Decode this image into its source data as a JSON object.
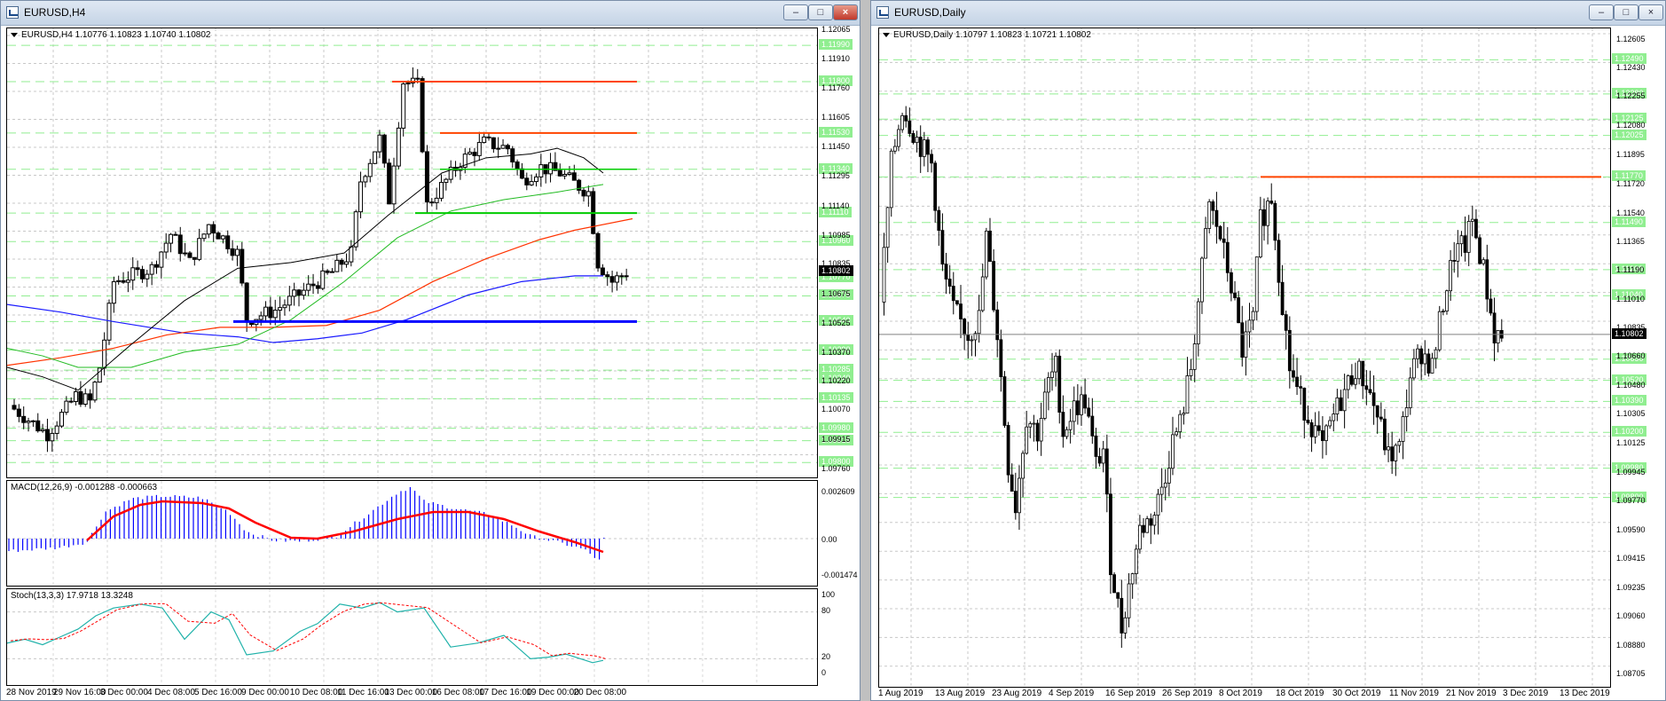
{
  "left": {
    "title": "EURUSD,H4",
    "info": "EURUSD,H4  1.10776 1.10823 1.10740 1.10802",
    "price_ticks": [
      "1.12065",
      "1.11910",
      "1.11760",
      "1.11605",
      "1.11450",
      "1.11295",
      "1.11140",
      "1.10985",
      "1.10835",
      "1.10675",
      "1.10525",
      "1.10370",
      "1.10220",
      "1.10070",
      "1.09915",
      "1.09760"
    ],
    "levels": [
      {
        "label": "1.11990"
      },
      {
        "label": "1.11800"
      },
      {
        "label": "1.11530"
      },
      {
        "label": "1.11340"
      },
      {
        "label": "1.11110"
      },
      {
        "label": "1.10960"
      },
      {
        "label": "1.10770"
      },
      {
        "label": "1.10675"
      },
      {
        "label": "1.10540"
      },
      {
        "label": "1.10390"
      },
      {
        "label": "1.10285"
      },
      {
        "label": "1.10240"
      },
      {
        "label": "1.10135"
      },
      {
        "label": "1.09980"
      },
      {
        "label": "1.09915"
      },
      {
        "label": "1.09800"
      }
    ],
    "current_price": "1.10802",
    "x_labels": [
      "28 Nov 2019",
      "29 Nov 16:00",
      "3 Dec 00:00",
      "4 Dec 08:00",
      "5 Dec 16:00",
      "9 Dec 00:00",
      "10 Dec 08:00",
      "11 Dec 16:00",
      "13 Dec 00:00",
      "16 Dec 08:00",
      "17 Dec 16:00",
      "19 Dec 00:00",
      "20 Dec 08:00"
    ],
    "macd": {
      "label": "MACD(12,26,9) -0.001288 -0.000663",
      "ticks": [
        "0.002609",
        "0.00",
        "-0.001474"
      ]
    },
    "stoch": {
      "label": "Stoch(13,3,3) 17.9718 13.3248",
      "ticks": [
        "100",
        "80",
        "20",
        "0"
      ]
    }
  },
  "right": {
    "title": "EURUSD,Daily",
    "info": "EURUSD,Daily  1.10797 1.10823 1.10721 1.10802",
    "price_ticks": [
      "1.12605",
      "1.12430",
      "1.12255",
      "1.12080",
      "1.11895",
      "1.11720",
      "1.11540",
      "1.11365",
      "1.11190",
      "1.11010",
      "1.10835",
      "1.10660",
      "1.10480",
      "1.10305",
      "1.10125",
      "1.09945",
      "1.09770",
      "1.09590",
      "1.09415",
      "1.09235",
      "1.09060",
      "1.08880",
      "1.08705"
    ],
    "levels": [
      {
        "label": "1.12490"
      },
      {
        "label": "1.12280"
      },
      {
        "label": "1.12125"
      },
      {
        "label": "1.12025"
      },
      {
        "label": "1.11770"
      },
      {
        "label": "1.11490"
      },
      {
        "label": "1.11200"
      },
      {
        "label": "1.11040"
      },
      {
        "label": "1.10650"
      },
      {
        "label": "1.10520"
      },
      {
        "label": "1.10390"
      },
      {
        "label": "1.10200"
      },
      {
        "label": "1.09980"
      },
      {
        "label": "1.09800"
      }
    ],
    "current_price": "1.10802",
    "x_labels": [
      "1 Aug 2019",
      "13 Aug 2019",
      "23 Aug 2019",
      "4 Sep 2019",
      "16 Sep 2019",
      "26 Sep 2019",
      "8 Oct 2019",
      "18 Oct 2019",
      "30 Oct 2019",
      "11 Nov 2019",
      "21 Nov 2019",
      "3 Dec 2019",
      "13 Dec 2019"
    ]
  },
  "window_buttons": {
    "minimize": "–",
    "maximize": "□",
    "close": "×"
  },
  "colors": {
    "level": "#90ee90",
    "resistance": "#ff4500",
    "support": "#0000ff",
    "green_line": "#00cc00",
    "macd_hist": "#0000ff",
    "macd_signal": "#ff0000",
    "stoch_main": "#20b2aa",
    "stoch_signal": "#ff0000"
  }
}
